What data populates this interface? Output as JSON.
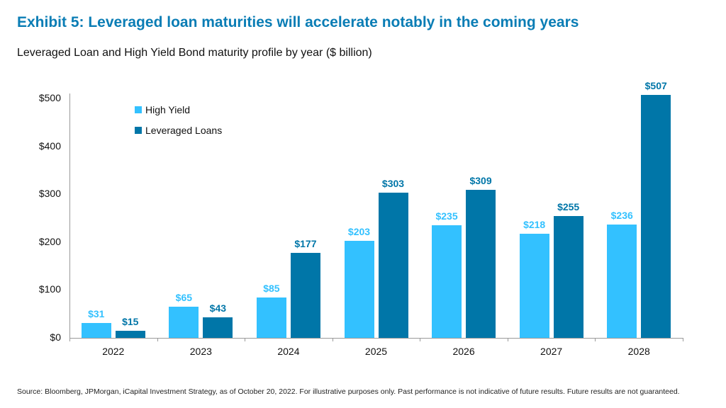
{
  "header": {
    "title": "Exhibit 5: Leveraged loan maturities will accelerate notably in the coming years",
    "subtitle": "Leveraged Loan and High Yield Bond maturity profile by year ($ billion)"
  },
  "legend": {
    "items": [
      {
        "label": "High Yield",
        "color": "#33c1ff"
      },
      {
        "label": "Leveraged Loans",
        "color": "#0076a8"
      }
    ]
  },
  "axis": {
    "y_ticks": [
      "$0",
      "$100",
      "$200",
      "$300",
      "$400",
      "$500"
    ]
  },
  "footer": {
    "source": "Source: Bloomberg, JPMorgan, iCapital Investment Strategy, as of October 20, 2022. For illustrative purposes only. Past performance is not indicative of future results. Future results are not guaranteed."
  },
  "colors": {
    "title": "#0a7db5",
    "high_yield": "#33c1ff",
    "leveraged_loans": "#0076a8"
  },
  "chart_data": {
    "type": "bar",
    "title": "Exhibit 5: Leveraged loan maturities will accelerate notably in the coming years",
    "subtitle": "Leveraged Loan and High Yield Bond maturity profile by year ($ billion)",
    "xlabel": "",
    "ylabel": "",
    "ylim": [
      0,
      500
    ],
    "y_ticks": [
      0,
      100,
      200,
      300,
      400,
      500
    ],
    "grid": false,
    "legend_position": "top-left inside plot",
    "categories": [
      "2022",
      "2023",
      "2024",
      "2025",
      "2026",
      "2027",
      "2028"
    ],
    "series": [
      {
        "name": "High Yield",
        "color": "#33c1ff",
        "values": [
          31,
          65,
          85,
          203,
          235,
          218,
          236
        ],
        "labels": [
          "$31",
          "$65",
          "$85",
          "$203",
          "$235",
          "$218",
          "$236"
        ]
      },
      {
        "name": "Leveraged Loans",
        "color": "#0076a8",
        "values": [
          15,
          43,
          177,
          303,
          309,
          255,
          507
        ],
        "labels": [
          "$15",
          "$43",
          "$177",
          "$303",
          "$309",
          "$255",
          "$507"
        ]
      }
    ]
  }
}
